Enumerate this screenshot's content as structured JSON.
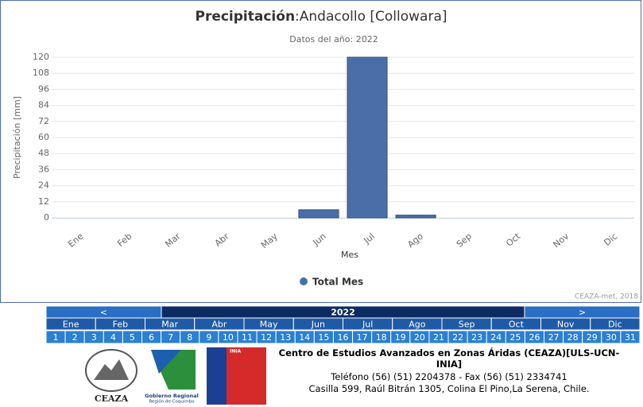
{
  "chart_data": {
    "type": "bar",
    "title": [
      "Precipitación",
      ":Andacollo [Collowara]"
    ],
    "subtitle": "Datos del año: 2022",
    "y_label": "Precipitación [mm]",
    "x_label": "Mes",
    "credit": "CEAZA-met, 2018",
    "categories": [
      "Ene",
      "Feb",
      "Mar",
      "Abr",
      "May",
      "Jun",
      "Jul",
      "Ago",
      "Sep",
      "Oct",
      "Nov",
      "Dic"
    ],
    "series": [
      {
        "name": "Total Mes",
        "color": "#4a6fa8",
        "values": [
          0,
          0,
          0,
          0,
          0,
          6,
          120,
          2,
          0,
          0,
          0,
          0
        ]
      }
    ],
    "ylim": [
      0,
      120
    ],
    "yticks": [
      0,
      12,
      24,
      36,
      48,
      60,
      72,
      84,
      96,
      108,
      120
    ],
    "grid": true
  },
  "nav": {
    "prev": "<",
    "year": "2022",
    "next": ">",
    "months": [
      "Ene",
      "Feb",
      "Mar",
      "Abr",
      "May",
      "Jun",
      "Jul",
      "Ago",
      "Sep",
      "Oct",
      "Nov",
      "Dic"
    ],
    "days": [
      1,
      2,
      3,
      4,
      5,
      6,
      7,
      8,
      9,
      10,
      11,
      12,
      13,
      14,
      15,
      16,
      17,
      18,
      19,
      20,
      21,
      22,
      23,
      24,
      25,
      26,
      27,
      28,
      29,
      30,
      31
    ]
  },
  "footer": {
    "logos": [
      "CEAZA",
      "Gobierno Regional",
      "Región de Coquimbo",
      "INIA"
    ],
    "org": "Centro de Estudios Avanzados en Zonas Áridas (CEAZA)[ULS-UCN-INIA]",
    "phone": "Teléfono (56) (51) 2204378 - Fax (56) (51) 2334741",
    "address": "Casilla 599, Raúl Bitrán 1305, Colina El Pino,La Serena, Chile."
  }
}
